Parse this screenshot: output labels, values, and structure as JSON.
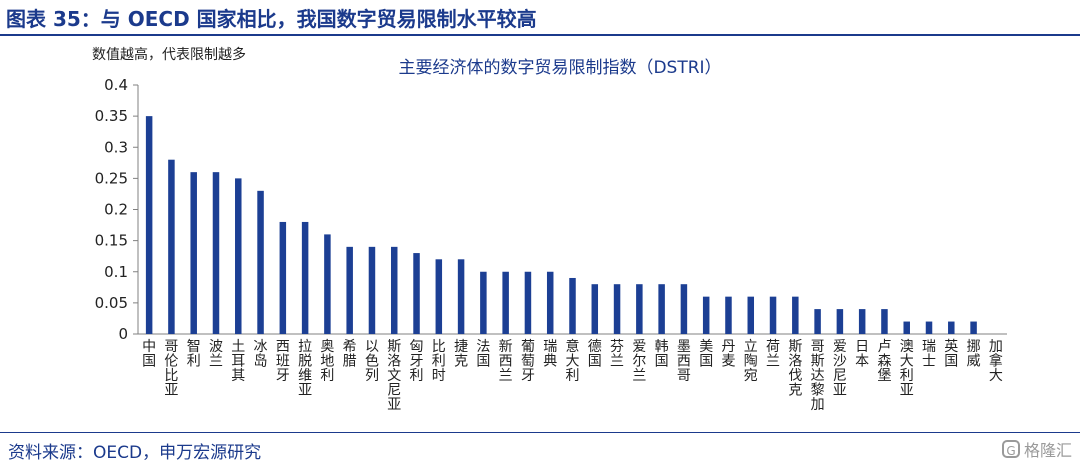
{
  "figure_title": "图表 35：与 OECD 国家相比，我国数字贸易限制水平较高",
  "source": "资料来源：OECD，申万宏源研究",
  "watermark": "格隆汇",
  "watermark_icon": "G",
  "colors": {
    "bar": "#1c3f94",
    "axis": "#808080",
    "title": "#1b3a8c"
  },
  "chart_data": {
    "type": "bar",
    "title": "主要经济体的数字贸易限制指数（DSTRI）",
    "ylabel": "数值越高，代表限制越多",
    "xlabel": "",
    "ylim": [
      0,
      0.4
    ],
    "yticks": [
      0,
      0.05,
      0.1,
      0.15,
      0.2,
      0.25,
      0.3,
      0.35,
      0.4
    ],
    "ytick_labels": [
      "0",
      "0.05",
      "0.1",
      "0.15",
      "0.2",
      "0.25",
      "0.3",
      "0.35",
      "0.4"
    ],
    "grid": false,
    "categories": [
      "中国",
      "哥伦比亚",
      "智利",
      "波兰",
      "土耳其",
      "冰岛",
      "西班牙",
      "拉脱维亚",
      "奥地利",
      "希腊",
      "以色列",
      "斯洛文尼亚",
      "匈牙利",
      "比利时",
      "捷克",
      "法国",
      "新西兰",
      "葡萄牙",
      "瑞典",
      "意大利",
      "德国",
      "芬兰",
      "爱尔兰",
      "韩国",
      "墨西哥",
      "美国",
      "丹麦",
      "立陶宛",
      "荷兰",
      "斯洛伐克",
      "哥斯达黎加",
      "爱沙尼亚",
      "日本",
      "卢森堡",
      "澳大利亚",
      "瑞士",
      "英国",
      "挪威",
      "加拿大"
    ],
    "values": [
      0.35,
      0.28,
      0.26,
      0.26,
      0.25,
      0.23,
      0.18,
      0.18,
      0.16,
      0.14,
      0.14,
      0.14,
      0.13,
      0.12,
      0.12,
      0.1,
      0.1,
      0.1,
      0.1,
      0.09,
      0.08,
      0.08,
      0.08,
      0.08,
      0.08,
      0.06,
      0.06,
      0.06,
      0.06,
      0.06,
      0.04,
      0.04,
      0.04,
      0.04,
      0.02,
      0.02,
      0.02,
      0.02,
      0
    ]
  }
}
